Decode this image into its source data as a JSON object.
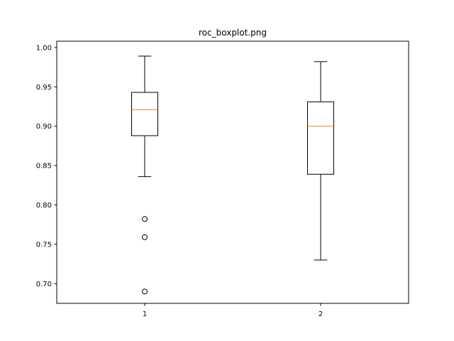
{
  "chart_data": {
    "type": "boxplot",
    "title": "roc_boxplot.png",
    "xlabel": "",
    "ylabel": "",
    "categories": [
      "1",
      "2"
    ],
    "ylim": [
      0.675,
      1.008
    ],
    "yticks": [
      0.7,
      0.75,
      0.8,
      0.85,
      0.9,
      0.95,
      1.0
    ],
    "ytick_labels": [
      "0.70",
      "0.75",
      "0.80",
      "0.85",
      "0.90",
      "0.95",
      "1.00"
    ],
    "grid": false,
    "boxes": [
      {
        "label": "1",
        "whisker_low": 0.836,
        "q1": 0.888,
        "median": 0.921,
        "q3": 0.943,
        "whisker_high": 0.989,
        "outliers": [
          0.782,
          0.759,
          0.69
        ]
      },
      {
        "label": "2",
        "whisker_low": 0.73,
        "q1": 0.839,
        "median": 0.9,
        "q3": 0.931,
        "whisker_high": 0.982,
        "outliers": []
      }
    ],
    "colors": {
      "box": "#000000",
      "median": "#ff7f0e",
      "outlier": "#000000"
    }
  }
}
